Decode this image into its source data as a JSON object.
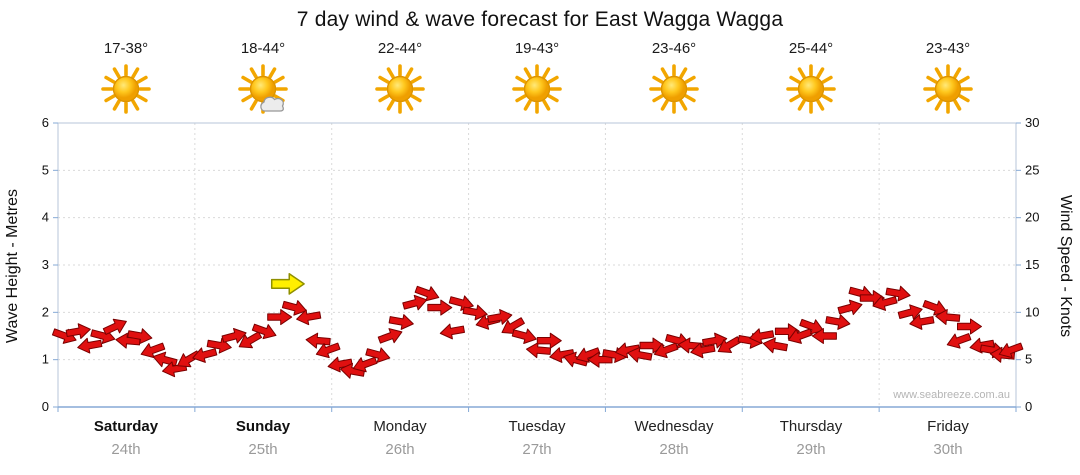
{
  "title": "7 day wind & wave forecast for East Wagga Wagga",
  "watermark": "www.seabreeze.com.au",
  "days": [
    {
      "name": "Saturday",
      "date": "24th",
      "temp": "17-38°",
      "icon": "sunny"
    },
    {
      "name": "Sunday",
      "date": "25th",
      "temp": "18-44°",
      "icon": "partly-cloudy"
    },
    {
      "name": "Monday",
      "date": "26th",
      "temp": "22-44°",
      "icon": "sunny"
    },
    {
      "name": "Tuesday",
      "date": "27th",
      "temp": "19-43°",
      "icon": "sunny"
    },
    {
      "name": "Wednesday",
      "date": "28th",
      "temp": "23-46°",
      "icon": "sunny"
    },
    {
      "name": "Thursday",
      "date": "29th",
      "temp": "25-44°",
      "icon": "sunny"
    },
    {
      "name": "Friday",
      "date": "30th",
      "temp": "23-43°",
      "icon": "sunny"
    }
  ],
  "chart_data": {
    "type": "scatter",
    "title": "7 day wind & wave forecast for East Wagga Wagga",
    "x_categories": [
      "Saturday 24th",
      "Sunday 25th",
      "Monday 26th",
      "Tuesday 27th",
      "Wednesday 28th",
      "Thursday 29th",
      "Friday 30th"
    ],
    "y_left": {
      "label": "Wave Height - Metres",
      "range": [
        0,
        6
      ],
      "ticks": [
        0,
        1,
        2,
        3,
        4,
        5,
        6
      ]
    },
    "y_right": {
      "label": "Wind Speed - Knots",
      "range": [
        0,
        30
      ],
      "ticks": [
        0,
        5,
        10,
        15,
        20,
        25,
        30
      ]
    },
    "grid": true,
    "legend": "none",
    "arrow_color": "#e01010",
    "arrow_outline": "#7a0000",
    "wind_points": [
      {
        "x": 0.05,
        "knots": 7.5,
        "dir": 20
      },
      {
        "x": 0.15,
        "knots": 8,
        "dir": -10
      },
      {
        "x": 0.23,
        "knots": 6.5,
        "dir": 170
      },
      {
        "x": 0.33,
        "knots": 7.5,
        "dir": 15
      },
      {
        "x": 0.42,
        "knots": 8.5,
        "dir": -25
      },
      {
        "x": 0.51,
        "knots": 7,
        "dir": 185
      },
      {
        "x": 0.6,
        "knots": 7.5,
        "dir": 10
      },
      {
        "x": 0.69,
        "knots": 6,
        "dir": 160
      },
      {
        "x": 0.78,
        "knots": 5,
        "dir": 195
      },
      {
        "x": 0.85,
        "knots": 4,
        "dir": 170
      },
      {
        "x": 0.95,
        "knots": 5,
        "dir": 150
      },
      {
        "x": 1.07,
        "knots": 5.5,
        "dir": 165
      },
      {
        "x": 1.18,
        "knots": 6.5,
        "dir": 10
      },
      {
        "x": 1.29,
        "knots": 7.5,
        "dir": -15
      },
      {
        "x": 1.4,
        "knots": 7,
        "dir": 150
      },
      {
        "x": 1.51,
        "knots": 8,
        "dir": 20
      },
      {
        "x": 1.62,
        "knots": 9.5,
        "dir": 0
      },
      {
        "x": 1.73,
        "knots": 10.5,
        "dir": 15
      },
      {
        "x": 1.83,
        "knots": 9.5,
        "dir": 170
      },
      {
        "x": 1.9,
        "knots": 7,
        "dir": 185
      },
      {
        "x": 1.97,
        "knots": 6,
        "dir": 160
      },
      {
        "x": 2.06,
        "knots": 4.5,
        "dir": 170
      },
      {
        "x": 2.15,
        "knots": 3.8,
        "dir": 190
      },
      {
        "x": 2.24,
        "knots": 4.5,
        "dir": 160
      },
      {
        "x": 2.34,
        "knots": 5.5,
        "dir": 15
      },
      {
        "x": 2.43,
        "knots": 7.5,
        "dir": -20
      },
      {
        "x": 2.51,
        "knots": 9,
        "dir": 10
      },
      {
        "x": 2.61,
        "knots": 11,
        "dir": -15
      },
      {
        "x": 2.7,
        "knots": 12,
        "dir": 20
      },
      {
        "x": 2.79,
        "knots": 10.5,
        "dir": 0
      },
      {
        "x": 2.88,
        "knots": 8,
        "dir": 170
      },
      {
        "x": 2.95,
        "knots": 11,
        "dir": 15
      },
      {
        "x": 3.05,
        "knots": 10,
        "dir": 10
      },
      {
        "x": 3.14,
        "knots": 9,
        "dir": 165
      },
      {
        "x": 3.23,
        "knots": 9.5,
        "dir": -10
      },
      {
        "x": 3.32,
        "knots": 8.5,
        "dir": 150
      },
      {
        "x": 3.41,
        "knots": 7.5,
        "dir": 15
      },
      {
        "x": 3.51,
        "knots": 6,
        "dir": 185
      },
      {
        "x": 3.59,
        "knots": 7,
        "dir": 0
      },
      {
        "x": 3.68,
        "knots": 5.5,
        "dir": 170
      },
      {
        "x": 3.78,
        "knots": 5,
        "dir": 195
      },
      {
        "x": 3.87,
        "knots": 5.5,
        "dir": 160
      },
      {
        "x": 3.96,
        "knots": 5,
        "dir": 180
      },
      {
        "x": 4.07,
        "knots": 5.5,
        "dir": 10
      },
      {
        "x": 4.16,
        "knots": 6,
        "dir": 170
      },
      {
        "x": 4.25,
        "knots": 5.5,
        "dir": 190
      },
      {
        "x": 4.34,
        "knots": 6.5,
        "dir": 0
      },
      {
        "x": 4.44,
        "knots": 6,
        "dir": 160
      },
      {
        "x": 4.53,
        "knots": 7,
        "dir": 15
      },
      {
        "x": 4.62,
        "knots": 6.5,
        "dir": 185
      },
      {
        "x": 4.71,
        "knots": 6,
        "dir": 170
      },
      {
        "x": 4.8,
        "knots": 7,
        "dir": -10
      },
      {
        "x": 4.9,
        "knots": 6.5,
        "dir": 150
      },
      {
        "x": 5.06,
        "knots": 7,
        "dir": 10
      },
      {
        "x": 5.14,
        "knots": 7.5,
        "dir": 170
      },
      {
        "x": 5.24,
        "knots": 6.5,
        "dir": 190
      },
      {
        "x": 5.33,
        "knots": 8,
        "dir": 0
      },
      {
        "x": 5.42,
        "knots": 7.5,
        "dir": 160
      },
      {
        "x": 5.51,
        "knots": 8.5,
        "dir": 20
      },
      {
        "x": 5.6,
        "knots": 7.5,
        "dir": 180
      },
      {
        "x": 5.7,
        "knots": 9,
        "dir": 10
      },
      {
        "x": 5.79,
        "knots": 10.5,
        "dir": -15
      },
      {
        "x": 5.87,
        "knots": 12,
        "dir": 15
      },
      {
        "x": 5.95,
        "knots": 11.5,
        "dir": 0
      },
      {
        "x": 6.04,
        "knots": 11,
        "dir": 165
      },
      {
        "x": 6.14,
        "knots": 12,
        "dir": 10
      },
      {
        "x": 6.23,
        "knots": 10,
        "dir": -15
      },
      {
        "x": 6.31,
        "knots": 9,
        "dir": 170
      },
      {
        "x": 6.41,
        "knots": 10.5,
        "dir": 20
      },
      {
        "x": 6.5,
        "knots": 9.5,
        "dir": 185
      },
      {
        "x": 6.58,
        "knots": 7,
        "dir": 160
      },
      {
        "x": 6.66,
        "knots": 8.5,
        "dir": 0
      },
      {
        "x": 6.75,
        "knots": 6.5,
        "dir": 170
      },
      {
        "x": 6.83,
        "knots": 6,
        "dir": 10
      },
      {
        "x": 6.9,
        "knots": 5.5,
        "dir": 185
      },
      {
        "x": 6.96,
        "knots": 6,
        "dir": 160
      }
    ],
    "highlight_point": {
      "x": 1.68,
      "knots": 13,
      "dir": 0,
      "color": "#ffef00",
      "outline": "#8f8f00"
    }
  }
}
